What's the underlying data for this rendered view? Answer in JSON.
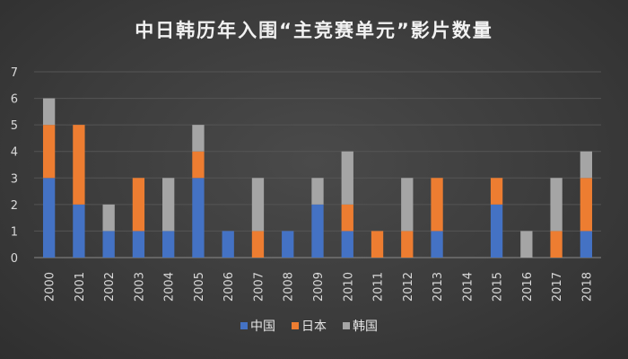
{
  "chart_data": {
    "type": "bar",
    "stacked": true,
    "title": "中日韩历年入围“主竞赛单元”影片数量",
    "xlabel": "",
    "ylabel": "",
    "ylim": [
      0,
      7
    ],
    "yticks": [
      0,
      1,
      2,
      3,
      4,
      5,
      6,
      7
    ],
    "grid": true,
    "legend_position": "bottom",
    "categories": [
      "2000",
      "2001",
      "2002",
      "2003",
      "2004",
      "2005",
      "2006",
      "2007",
      "2008",
      "2009",
      "2010",
      "2011",
      "2012",
      "2013",
      "2014",
      "2015",
      "2016",
      "2017",
      "2018"
    ],
    "series": [
      {
        "name": "中国",
        "color": "#4472c4",
        "values": [
          3,
          2,
          1,
          1,
          1,
          3,
          1,
          0,
          1,
          2,
          1,
          0,
          0,
          1,
          0,
          2,
          0,
          0,
          1
        ]
      },
      {
        "name": "日本",
        "color": "#ed7d31",
        "values": [
          2,
          3,
          0,
          2,
          0,
          1,
          0,
          1,
          0,
          0,
          1,
          1,
          1,
          2,
          0,
          1,
          0,
          1,
          2
        ]
      },
      {
        "name": "韩国",
        "color": "#a5a5a5",
        "values": [
          1,
          0,
          1,
          0,
          2,
          1,
          0,
          2,
          0,
          1,
          2,
          0,
          2,
          0,
          0,
          0,
          1,
          2,
          1
        ]
      }
    ]
  }
}
